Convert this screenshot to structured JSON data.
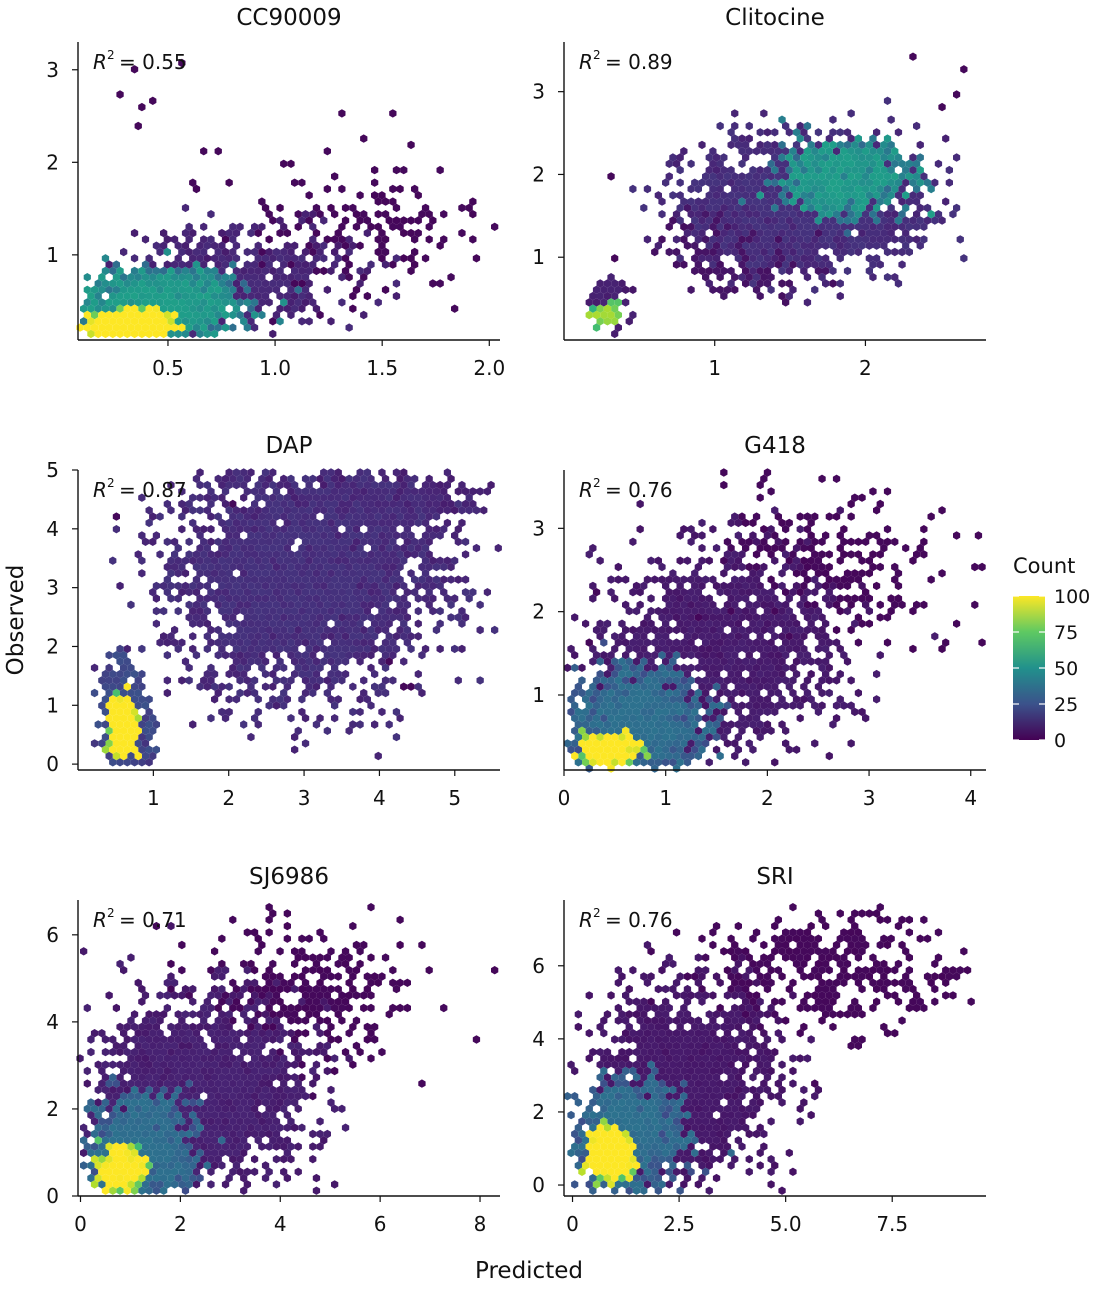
{
  "figure": {
    "xlabel": "Predicted",
    "ylabel": "Observed",
    "colorbar": {
      "title": "Count",
      "ticks": [
        "100",
        "75",
        "50",
        "25",
        "0"
      ],
      "range": [
        0,
        100
      ],
      "colormap": [
        "#440154",
        "#3b528b",
        "#21918c",
        "#5ec962",
        "#fde725"
      ]
    }
  },
  "chart_data": [
    {
      "type": "scatter",
      "title": "CC90009",
      "r2_label": "R",
      "r2_sup": "2",
      "r2_value": "= 0.55",
      "xlim": [
        0.08,
        2.05
      ],
      "ylim": [
        0.08,
        3.3
      ],
      "xticks": [
        0.5,
        1.0,
        1.5,
        2.0
      ],
      "xtick_labels": [
        "0.5",
        "1.0",
        "1.5",
        "2.0"
      ],
      "yticks": [
        1,
        2,
        3
      ],
      "ytick_labels": [
        "1",
        "2",
        "3"
      ],
      "cores": [
        {
          "x": 0.33,
          "y": 0.25,
          "sx": 0.08,
          "sy": 0.06,
          "n": 900,
          "d": 0.95
        },
        {
          "x": 0.45,
          "y": 0.45,
          "sx": 0.17,
          "sy": 0.16,
          "n": 1300,
          "d": 0.45
        },
        {
          "x": 0.8,
          "y": 0.75,
          "sx": 0.28,
          "sy": 0.25,
          "n": 500,
          "d": 0.1
        },
        {
          "x": 1.35,
          "y": 1.3,
          "sx": 0.3,
          "sy": 0.35,
          "n": 180,
          "d": 0.02
        }
      ],
      "outliers": [
        [
          0.35,
          3.0
        ],
        [
          0.58,
          3.05
        ],
        [
          0.42,
          2.65
        ],
        [
          0.38,
          2.6
        ],
        [
          0.35,
          2.38
        ],
        [
          0.28,
          2.7
        ],
        [
          0.65,
          2.15
        ],
        [
          1.3,
          2.55
        ],
        [
          1.55,
          2.5
        ],
        [
          1.65,
          2.2
        ],
        [
          0.65,
          0.35
        ],
        [
          1.0,
          0.3
        ]
      ]
    },
    {
      "type": "scatter",
      "title": "Clitocine",
      "r2_label": "R",
      "r2_sup": "2",
      "r2_value": "= 0.89",
      "xlim": [
        0.0,
        2.8
      ],
      "ylim": [
        0.0,
        3.6
      ],
      "xticks": [
        1,
        2
      ],
      "xtick_labels": [
        "1",
        "2"
      ],
      "yticks": [
        1,
        2,
        3
      ],
      "ytick_labels": [
        "1",
        "2",
        "3"
      ],
      "cores": [
        {
          "x": 0.28,
          "y": 0.3,
          "sx": 0.04,
          "sy": 0.05,
          "n": 120,
          "d": 0.7
        },
        {
          "x": 0.3,
          "y": 0.45,
          "sx": 0.06,
          "sy": 0.15,
          "n": 100,
          "d": 0.08
        },
        {
          "x": 1.85,
          "y": 1.95,
          "sx": 0.2,
          "sy": 0.2,
          "n": 700,
          "d": 0.45
        },
        {
          "x": 1.6,
          "y": 1.65,
          "sx": 0.38,
          "sy": 0.38,
          "n": 1400,
          "d": 0.12
        },
        {
          "x": 1.2,
          "y": 1.1,
          "sx": 0.25,
          "sy": 0.25,
          "n": 300,
          "d": 0.05
        }
      ],
      "outliers": [
        [
          2.3,
          3.45
        ],
        [
          2.65,
          3.3
        ],
        [
          2.6,
          3.0
        ],
        [
          0.3,
          1.95
        ],
        [
          0.35,
          1.0
        ],
        [
          2.5,
          2.8
        ],
        [
          1.15,
          2.55
        ]
      ]
    },
    {
      "type": "scatter",
      "title": "DAP",
      "r2_label": "R",
      "r2_sup": "2",
      "r2_value": "= 0.87",
      "xlim": [
        0.0,
        5.6
      ],
      "ylim": [
        -0.1,
        5.0
      ],
      "xticks": [
        1,
        2,
        3,
        4,
        5
      ],
      "xtick_labels": [
        "1",
        "2",
        "3",
        "4",
        "5"
      ],
      "yticks": [
        0,
        1,
        2,
        3,
        4,
        5
      ],
      "ytick_labels": [
        "0",
        "1",
        "2",
        "3",
        "4",
        "5"
      ],
      "cores": [
        {
          "x": 0.6,
          "y": 0.6,
          "sx": 0.07,
          "sy": 0.2,
          "n": 800,
          "d": 0.9
        },
        {
          "x": 0.62,
          "y": 0.75,
          "sx": 0.14,
          "sy": 0.45,
          "n": 500,
          "d": 0.2
        },
        {
          "x": 3.0,
          "y": 3.1,
          "sx": 0.85,
          "sy": 0.95,
          "n": 2600,
          "d": 0.12
        },
        {
          "x": 4.0,
          "y": 4.4,
          "sx": 0.6,
          "sy": 0.25,
          "n": 500,
          "d": 0.1
        }
      ],
      "outliers": [
        [
          0.5,
          4.25
        ],
        [
          2.05,
          4.45
        ],
        [
          4.35,
          1.35
        ],
        [
          4.4,
          1.3
        ],
        [
          4.1,
          1.7
        ]
      ]
    },
    {
      "type": "scatter",
      "title": "G418",
      "r2_label": "R",
      "r2_sup": "2",
      "r2_value": "= 0.76",
      "xlim": [
        0.0,
        4.15
      ],
      "ylim": [
        0.1,
        3.7
      ],
      "xticks": [
        0,
        1,
        2,
        3,
        4
      ],
      "xtick_labels": [
        "0",
        "1",
        "2",
        "3",
        "4"
      ],
      "yticks": [
        1,
        2,
        3
      ],
      "ytick_labels": [
        "1",
        "2",
        "3"
      ],
      "cores": [
        {
          "x": 0.45,
          "y": 0.35,
          "sx": 0.12,
          "sy": 0.07,
          "n": 500,
          "d": 0.85
        },
        {
          "x": 0.7,
          "y": 0.65,
          "sx": 0.3,
          "sy": 0.3,
          "n": 1200,
          "d": 0.3
        },
        {
          "x": 1.5,
          "y": 1.5,
          "sx": 0.6,
          "sy": 0.6,
          "n": 1100,
          "d": 0.07
        },
        {
          "x": 2.6,
          "y": 2.6,
          "sx": 0.55,
          "sy": 0.45,
          "n": 250,
          "d": 0.02
        }
      ],
      "outliers": [
        [
          1.6,
          3.65
        ],
        [
          4.05,
          2.9
        ],
        [
          3.7,
          3.25
        ],
        [
          3.5,
          2.8
        ],
        [
          3.0,
          2.45
        ],
        [
          0.3,
          2.25
        ],
        [
          0.25,
          1.6
        ]
      ]
    },
    {
      "type": "scatter",
      "title": "SJ6986",
      "r2_label": "R",
      "r2_sup": "2",
      "r2_value": "= 0.71",
      "xlim": [
        -0.05,
        8.4
      ],
      "ylim": [
        0.0,
        6.8
      ],
      "xticks": [
        0,
        2,
        4,
        6,
        8
      ],
      "xtick_labels": [
        "0",
        "2",
        "4",
        "6",
        "8"
      ],
      "yticks": [
        0,
        2,
        4,
        6
      ],
      "ytick_labels": [
        "0",
        "2",
        "4",
        "6"
      ],
      "cores": [
        {
          "x": 0.8,
          "y": 0.6,
          "sx": 0.2,
          "sy": 0.2,
          "n": 500,
          "d": 0.85
        },
        {
          "x": 1.2,
          "y": 1.1,
          "sx": 0.45,
          "sy": 0.5,
          "n": 1100,
          "d": 0.3
        },
        {
          "x": 2.4,
          "y": 2.4,
          "sx": 1.0,
          "sy": 1.0,
          "n": 1700,
          "d": 0.08
        },
        {
          "x": 4.5,
          "y": 4.6,
          "sx": 1.0,
          "sy": 0.8,
          "n": 300,
          "d": 0.02
        }
      ],
      "outliers": [
        [
          8.0,
          3.6
        ],
        [
          1.5,
          6.2
        ],
        [
          6.8,
          5.8
        ],
        [
          6.6,
          4.9
        ],
        [
          0.4,
          0.3
        ]
      ]
    },
    {
      "type": "scatter",
      "title": "SRI",
      "r2_label": "R",
      "r2_sup": "2",
      "r2_value": "= 0.76",
      "xlim": [
        -0.2,
        9.7
      ],
      "ylim": [
        -0.3,
        7.8
      ],
      "xticks": [
        0,
        2.5,
        5.0,
        7.5
      ],
      "xtick_labels": [
        "0",
        "2.5",
        "5.0",
        "7.5"
      ],
      "yticks": [
        0,
        2,
        4,
        6
      ],
      "ytick_labels": [
        "0",
        "2",
        "4",
        "6"
      ],
      "cores": [
        {
          "x": 0.9,
          "y": 0.8,
          "sx": 0.22,
          "sy": 0.3,
          "n": 600,
          "d": 0.95
        },
        {
          "x": 1.3,
          "y": 1.4,
          "sx": 0.55,
          "sy": 0.65,
          "n": 1100,
          "d": 0.3
        },
        {
          "x": 2.6,
          "y": 2.9,
          "sx": 1.1,
          "sy": 1.2,
          "n": 1300,
          "d": 0.06
        },
        {
          "x": 5.8,
          "y": 5.8,
          "sx": 1.6,
          "sy": 0.8,
          "n": 350,
          "d": 0.02
        }
      ],
      "outliers": [
        [
          7.0,
          7.5
        ],
        [
          9.2,
          6.35
        ],
        [
          8.7,
          5.2
        ],
        [
          5.7,
          2.7
        ],
        [
          0.5,
          0.2
        ],
        [
          8.3,
          6.8
        ]
      ]
    }
  ]
}
